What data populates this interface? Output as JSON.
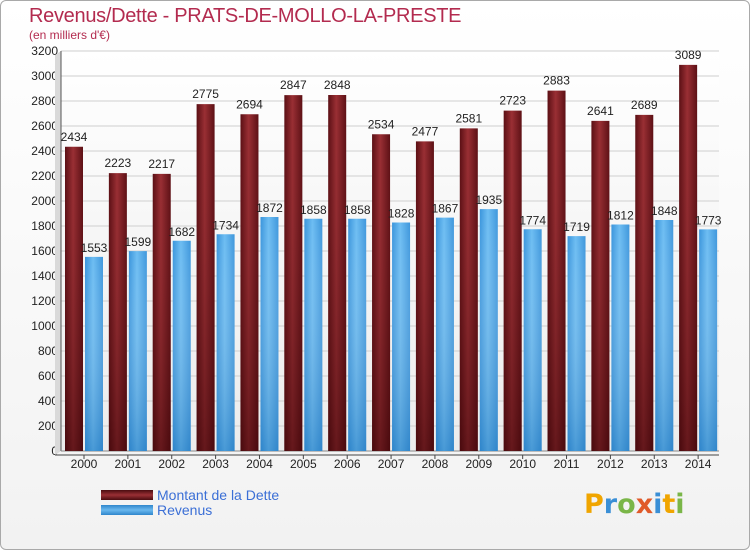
{
  "header": {
    "title": "Revenus/Dette - PRATS-DE-MOLLO-LA-PRESTE",
    "subtitle": "(en milliers d'€)"
  },
  "colors": {
    "dette": "#7a1a1f",
    "revenus": "#4aa3e6",
    "title": "#b32b4f",
    "legend_text": "#3b6fd6"
  },
  "chart_data": {
    "type": "bar",
    "title": "Revenus/Dette - PRATS-DE-MOLLO-LA-PRESTE",
    "subtitle": "(en milliers d'€)",
    "categories": [
      "2000",
      "2001",
      "2002",
      "2003",
      "2004",
      "2005",
      "2006",
      "2007",
      "2008",
      "2009",
      "2010",
      "2011",
      "2012",
      "2013",
      "2014"
    ],
    "series": [
      {
        "name": "Montant de la Dette",
        "values": [
          2434,
          2223,
          2217,
          2775,
          2694,
          2847,
          2848,
          2534,
          2477,
          2581,
          2723,
          2883,
          2641,
          2689,
          3089
        ]
      },
      {
        "name": "Revenus",
        "values": [
          1553,
          1599,
          1682,
          1734,
          1872,
          1858,
          1858,
          1828,
          1867,
          1935,
          1774,
          1719,
          1812,
          1848,
          1773
        ]
      }
    ],
    "yticks": [
      0,
      200,
      400,
      600,
      800,
      1000,
      1200,
      1400,
      1600,
      1800,
      2000,
      2200,
      2400,
      2600,
      2800,
      3000,
      3200
    ],
    "ylim": [
      0,
      3200
    ],
    "grid": true,
    "legend_position": "bottom-left"
  },
  "legend": {
    "dette_label": "Montant de la Dette",
    "revenus_label": "Revenus"
  },
  "logo": {
    "letters": [
      "P",
      "r",
      "o",
      "x",
      "i",
      "t",
      "i"
    ],
    "colors": [
      "#f0a500",
      "#3a8fd6",
      "#7ab648",
      "#e05a2a",
      "#3a8fd6",
      "#f0a500",
      "#7ab648"
    ]
  }
}
